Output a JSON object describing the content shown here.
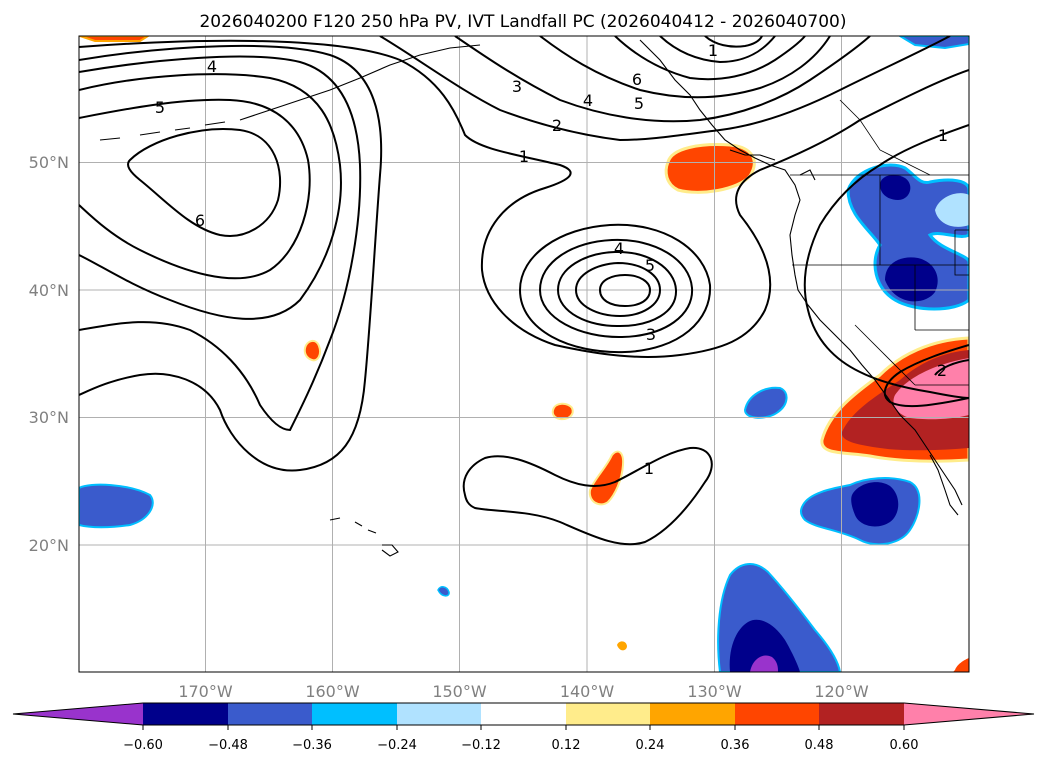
{
  "title": "2026040200 F120 250 hPa PV, IVT Landfall PC (2026040412 - 2026040700)",
  "map": {
    "lat_labels": [
      "50°N",
      "40°N",
      "30°N",
      "20°N"
    ],
    "lon_labels": [
      "170°W",
      "160°W",
      "150°W",
      "140°W",
      "130°W",
      "120°W"
    ],
    "contour_labels": [
      {
        "id": "c-4-nw",
        "text": "4"
      },
      {
        "id": "c-5-nw",
        "text": "5"
      },
      {
        "id": "c-6-w",
        "text": "6"
      },
      {
        "id": "c-3-n",
        "text": "3"
      },
      {
        "id": "c-4-n",
        "text": "4"
      },
      {
        "id": "c-2-n",
        "text": "2"
      },
      {
        "id": "c-1-n",
        "text": "1"
      },
      {
        "id": "c-1-top",
        "text": "1"
      },
      {
        "id": "c-6-top",
        "text": "6"
      },
      {
        "id": "c-5-top",
        "text": "5"
      },
      {
        "id": "c-4-low",
        "text": "4"
      },
      {
        "id": "c-5-low",
        "text": "5"
      },
      {
        "id": "c-3-low",
        "text": "3"
      },
      {
        "id": "c-1-sub",
        "text": "1"
      },
      {
        "id": "c-1-ne",
        "text": "1"
      },
      {
        "id": "c-2-se",
        "text": "2"
      }
    ]
  },
  "colorbar": {
    "colors": [
      "#9933cc",
      "#00008b",
      "#3a5bcc",
      "#00bfff",
      "#b0e2ff",
      "#ffffff",
      "#ffec8b",
      "#ffa500",
      "#ff4500",
      "#b22222",
      "#ff80aa"
    ],
    "tick_labels": [
      "−0.60",
      "−0.48",
      "−0.36",
      "−0.24",
      "−0.12",
      "0.12",
      "0.24",
      "0.36",
      "0.48",
      "0.60"
    ]
  }
}
